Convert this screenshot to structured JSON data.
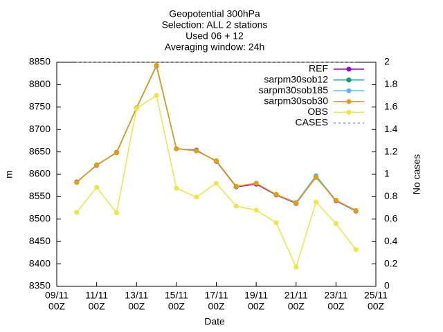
{
  "chart_data": {
    "type": "line",
    "title": [
      "Geopotential 300hPa",
      "Selection: ALL      2 stations",
      "Used 06 + 12",
      "Averaging window: 24h"
    ],
    "xlabel": "Date",
    "ylabel": "m",
    "y2label": "No cases",
    "x": [
      "10/11 00Z",
      "11/11 00Z",
      "12/11 00Z",
      "13/11 00Z",
      "14/11 00Z",
      "15/11 00Z",
      "16/11 00Z",
      "17/11 00Z",
      "18/11 00Z",
      "19/11 00Z",
      "20/11 00Z",
      "21/11 00Z",
      "22/11 00Z",
      "23/11 00Z",
      "24/11 00Z"
    ],
    "xlim": [
      "09/11 00Z",
      "25/11 00Z"
    ],
    "xticks": [
      {
        "value": "09/11 00Z",
        "label": [
          "09/11",
          "00Z"
        ]
      },
      {
        "value": "11/11 00Z",
        "label": [
          "11/11",
          "00Z"
        ]
      },
      {
        "value": "13/11 00Z",
        "label": [
          "13/11",
          "00Z"
        ]
      },
      {
        "value": "15/11 00Z",
        "label": [
          "15/11",
          "00Z"
        ]
      },
      {
        "value": "17/11 00Z",
        "label": [
          "17/11",
          "00Z"
        ]
      },
      {
        "value": "19/11 00Z",
        "label": [
          "19/11",
          "00Z"
        ]
      },
      {
        "value": "21/11 00Z",
        "label": [
          "21/11",
          "00Z"
        ]
      },
      {
        "value": "23/11 00Z",
        "label": [
          "23/11",
          "00Z"
        ]
      },
      {
        "value": "25/11 00Z",
        "label": [
          "25/11",
          "00Z"
        ]
      }
    ],
    "ylim": [
      8350,
      8850
    ],
    "yticks": [
      8350,
      8400,
      8450,
      8500,
      8550,
      8600,
      8650,
      8700,
      8750,
      8800,
      8850
    ],
    "y2lim": [
      0,
      2
    ],
    "y2ticks": [
      0,
      0.2,
      0.4,
      0.6,
      0.8,
      1,
      1.2,
      1.4,
      1.6,
      1.8,
      2
    ],
    "legend": "top-right",
    "series": [
      {
        "name": "REF",
        "color": "#9400d3",
        "values": [
          8583,
          8620,
          8649,
          8748,
          8842,
          8657,
          8654,
          8629,
          8572,
          8578,
          8554,
          8535,
          8594,
          8541,
          8518
        ]
      },
      {
        "name": "sarpm30sob12",
        "color": "#009e73",
        "values": [
          8582,
          8621,
          8648,
          8748,
          8843,
          8657,
          8653,
          8630,
          8573,
          8580,
          8555,
          8537,
          8595,
          8542,
          8519
        ]
      },
      {
        "name": "sarpm30sob185",
        "color": "#56b4e9",
        "values": [
          8582,
          8621,
          8648,
          8748,
          8843,
          8657,
          8653,
          8630,
          8573,
          8580,
          8555,
          8537,
          8597,
          8542,
          8519
        ]
      },
      {
        "name": "sarpm30sob30",
        "color": "#e69f00",
        "values": [
          8582,
          8621,
          8648,
          8748,
          8843,
          8657,
          8652,
          8630,
          8573,
          8580,
          8555,
          8536,
          8593,
          8542,
          8519
        ]
      },
      {
        "name": "OBS",
        "color": "#f0e442",
        "values": [
          8515,
          8571,
          8514,
          8747,
          8776,
          8569,
          8549,
          8580,
          8529,
          8520,
          8492,
          8393,
          8538,
          8490,
          8432
        ]
      },
      {
        "name": "CASES",
        "color": "#a0a0a0",
        "axis": "y2",
        "dashed": true,
        "values": [
          2,
          2,
          2,
          2,
          2,
          2,
          2,
          2,
          2,
          2,
          2,
          2,
          2,
          2,
          2
        ]
      }
    ]
  }
}
